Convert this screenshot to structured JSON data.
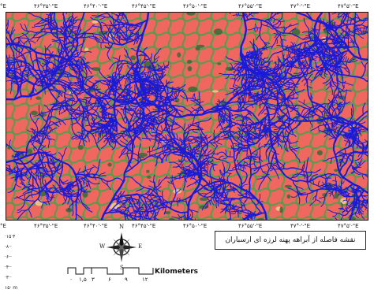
{
  "top_ticks": [
    "°E",
    "۴۶°۳۵'·\"E",
    "۴۶°۴۰'·\"E",
    "۴۶°۴۵'·\"E",
    "۴۶°۵۰'·\"E",
    "۴۶°۵۵'·\"E",
    "۴۷°·'·\"E",
    "۴۷°۵'·\"E"
  ],
  "bottom_ticks": [
    "°E",
    "۴۶°۳۵'·\"E",
    "۴۶°۴۰'·\"E",
    "۴۶°۴۵'·\"E",
    "۴۶°۵۰'·\"E",
    "۴۶°۵۵'·\"E",
    "۴۷°·'·\"E",
    "۴۷°۵'·\"E"
  ],
  "legend_values": [
    "·۱۵·۴",
    "·۸··",
    "·۶··",
    "·۴··",
    "·۳··",
    "۱۵· m"
  ],
  "compass": {
    "n": "N",
    "s": "S",
    "e": "E",
    "w": "W"
  },
  "scale_bar": {
    "unit": "Kilometers",
    "labels": [
      "·",
      "۱,۵",
      "۳",
      "۶",
      "۹",
      "۱۲"
    ]
  },
  "map_title": "نقشه فاصله از آبراهه پهنه لرزه ای ارسباران",
  "colors": {
    "land": "#f0675f",
    "buffer": "#5e9a4e",
    "far_zone": "#3f6b3a",
    "river": "#1a1ad8",
    "accent": "#f3c889"
  }
}
